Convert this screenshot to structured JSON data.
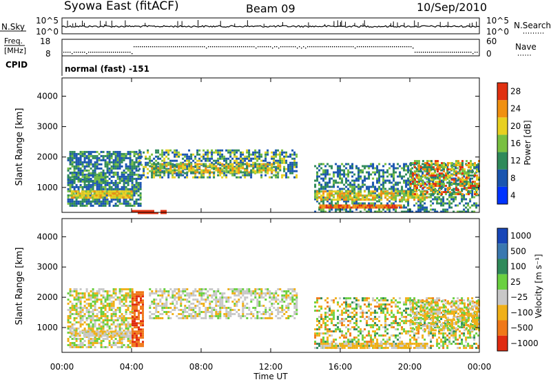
{
  "header": {
    "station": "Syowa East (fitACF)",
    "beam": "Beam 09",
    "date": "10/Sep/2010"
  },
  "noise_panel": {
    "left_label": "N.Sky",
    "right_label": "N.Search",
    "left_ticks": [
      "10^5",
      "10^0"
    ],
    "right_ticks": [
      "10^5",
      "10^0"
    ]
  },
  "freq_panel": {
    "left_label_line1": "Freq.",
    "left_label_line2": "[MHz]",
    "left_ticks": [
      "18",
      "8"
    ],
    "right_label": "Nave",
    "right_ticks": [
      "60",
      "0"
    ]
  },
  "cpid": {
    "label": "CPID",
    "value": "normal (fast) -151"
  },
  "axis": {
    "ylabel": "Slant Range [km]",
    "yticks": [
      "4000",
      "3000",
      "2000",
      "1000"
    ],
    "xlabel": "Time UT",
    "xticks": [
      "00:00",
      "04:00",
      "08:00",
      "12:00",
      "16:00",
      "20:00",
      "00:00"
    ]
  },
  "colorbars": {
    "power": {
      "label": "Power [dB]",
      "ticks": [
        "28",
        "24",
        "20",
        "16",
        "12",
        "8",
        "4"
      ],
      "colors": [
        "#0033ff",
        "#1a55b0",
        "#2f8a5a",
        "#79c040",
        "#e8d020",
        "#f09010",
        "#e03010"
      ]
    },
    "velocity": {
      "label": "Velocity [m s⁻¹]",
      "ticks": [
        "1000",
        "500",
        "100",
        "25",
        "−25",
        "−100",
        "−500",
        "−1000"
      ],
      "colors": [
        "#1846b8",
        "#3a78b0",
        "#2f8a5a",
        "#6ad040",
        "#c8c8c8",
        "#f0b018",
        "#f07818",
        "#e02a10"
      ]
    }
  },
  "chart_data": [
    {
      "type": "heatmap",
      "title": "Power",
      "xlabel": "Time UT",
      "ylabel": "Slant Range [km]",
      "xlim": [
        "00:00",
        "24:00"
      ],
      "ylim": [
        180,
        4600
      ],
      "colorbar": "Power [dB]",
      "colorbar_range": [
        0,
        32
      ],
      "echo_regions": [
        {
          "t_start": 0.3,
          "t_end": 4.5,
          "r_low": 400,
          "r_high": 2200,
          "level": "8-16"
        },
        {
          "t_start": 0.5,
          "t_end": 4.0,
          "r_low": 650,
          "r_high": 900,
          "level": "16-24"
        },
        {
          "t_start": 4.4,
          "t_end": 13.5,
          "r_low": 1300,
          "r_high": 2200,
          "level": "8-20"
        },
        {
          "t_start": 14.5,
          "t_end": 24.0,
          "r_low": 200,
          "r_high": 1800,
          "level": "8-24"
        },
        {
          "t_start": 14.8,
          "t_end": 19.5,
          "r_low": 380,
          "r_high": 420,
          "level": "24-28"
        }
      ]
    },
    {
      "type": "heatmap",
      "title": "Velocity",
      "xlabel": "Time UT",
      "ylabel": "Slant Range [km]",
      "xlim": [
        "00:00",
        "24:00"
      ],
      "ylim": [
        180,
        4600
      ],
      "colorbar": "Velocity [m s⁻¹]",
      "colorbar_range": [
        -1000,
        1000
      ],
      "echo_regions": [
        {
          "t_start": 0.3,
          "t_end": 4.0,
          "r_low": 400,
          "r_high": 2300,
          "level": "-100..25"
        },
        {
          "t_start": 4.0,
          "t_end": 4.6,
          "r_low": 400,
          "r_high": 2200,
          "level": "-500"
        },
        {
          "t_start": 5.0,
          "t_end": 13.5,
          "r_low": 1300,
          "r_high": 2300,
          "level": "-25..25"
        },
        {
          "t_start": 14.5,
          "t_end": 24.0,
          "r_low": 300,
          "r_high": 2000,
          "level": "-100..500"
        }
      ]
    }
  ]
}
